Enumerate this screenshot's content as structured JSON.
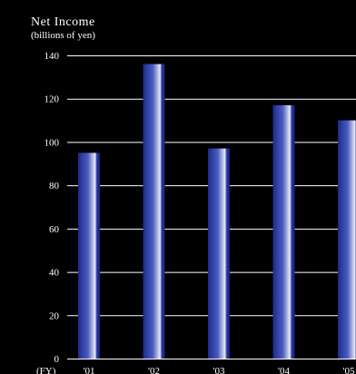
{
  "chart_data": {
    "type": "bar",
    "title": "Net Income",
    "subtitle": "(billions of yen)",
    "xlabel": "(FY)",
    "ylabel": "",
    "categories": [
      "'01",
      "'02",
      "'03",
      "'04",
      "'05"
    ],
    "values": [
      95,
      136,
      97,
      117,
      110
    ],
    "ylim": [
      0,
      140
    ],
    "yticks": [
      "0",
      "20",
      "40",
      "60",
      "80",
      "100",
      "120",
      "140"
    ],
    "grid": true,
    "legend": "none",
    "colors": {
      "background": "#000000",
      "text": "#ffffff",
      "gridline": "#ffffff",
      "bar_dark": "#1c2a8c",
      "bar_mid": "#4a5cc0",
      "bar_light": "#e6e8f6"
    }
  }
}
